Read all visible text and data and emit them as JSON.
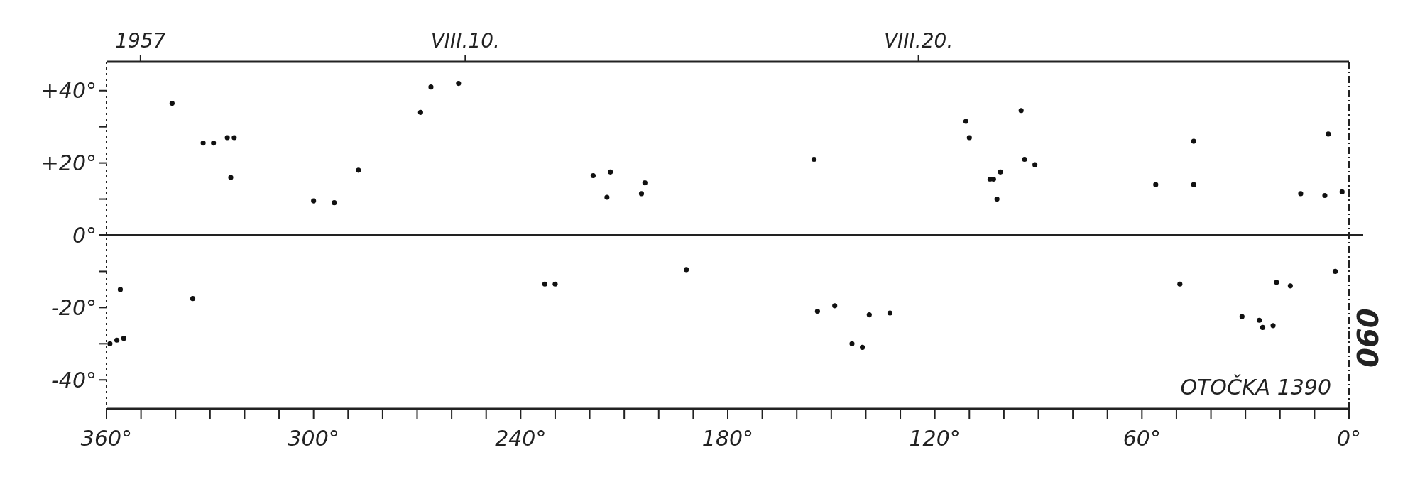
{
  "chart_data": {
    "type": "scatter",
    "marker": "circle",
    "xlim": [
      360,
      0
    ],
    "ylim": [
      -48,
      48
    ],
    "xticks": [
      {
        "value": 360,
        "label": "360°"
      },
      {
        "value": 350,
        "label": null
      },
      {
        "value": 340,
        "label": null
      },
      {
        "value": 330,
        "label": null
      },
      {
        "value": 320,
        "label": null
      },
      {
        "value": 310,
        "label": null
      },
      {
        "value": 300,
        "label": "300°"
      },
      {
        "value": 290,
        "label": null
      },
      {
        "value": 280,
        "label": null
      },
      {
        "value": 270,
        "label": null
      },
      {
        "value": 260,
        "label": null
      },
      {
        "value": 250,
        "label": null
      },
      {
        "value": 240,
        "label": "240°"
      },
      {
        "value": 230,
        "label": null
      },
      {
        "value": 220,
        "label": null
      },
      {
        "value": 210,
        "label": null
      },
      {
        "value": 200,
        "label": null
      },
      {
        "value": 190,
        "label": null
      },
      {
        "value": 180,
        "label": "180°"
      },
      {
        "value": 170,
        "label": null
      },
      {
        "value": 160,
        "label": null
      },
      {
        "value": 150,
        "label": null
      },
      {
        "value": 140,
        "label": null
      },
      {
        "value": 130,
        "label": null
      },
      {
        "value": 120,
        "label": "120°"
      },
      {
        "value": 110,
        "label": null
      },
      {
        "value": 100,
        "label": null
      },
      {
        "value": 90,
        "label": null
      },
      {
        "value": 80,
        "label": null
      },
      {
        "value": 70,
        "label": null
      },
      {
        "value": 60,
        "label": "60°"
      },
      {
        "value": 50,
        "label": null
      },
      {
        "value": 40,
        "label": null
      },
      {
        "value": 30,
        "label": null
      },
      {
        "value": 20,
        "label": null
      },
      {
        "value": 10,
        "label": null
      },
      {
        "value": 0,
        "label": "0°"
      }
    ],
    "yticks": [
      {
        "value": 40,
        "label": "+40°"
      },
      {
        "value": 30,
        "label": null
      },
      {
        "value": 20,
        "label": "+20°"
      },
      {
        "value": 10,
        "label": null
      },
      {
        "value": 0,
        "label": "0°"
      },
      {
        "value": -10,
        "label": null
      },
      {
        "value": -20,
        "label": "-20°"
      },
      {
        "value": -30,
        "label": null
      },
      {
        "value": -40,
        "label": "-40°"
      }
    ],
    "x2lim": [
      "1957-08-02T02:00",
      "1957-08-29T12:00"
    ],
    "x2ticks": [
      {
        "value": "1957-08-02T20:00",
        "label": "1957"
      },
      {
        "value": "1957-08-10",
        "label": "VIII.10."
      },
      {
        "value": "1957-08-20",
        "label": "VIII.20."
      }
    ],
    "ref_lines": [
      {
        "axis": "y",
        "value": 0,
        "color": "#222222"
      }
    ],
    "annotations": [
      "OTOČKA 1390",
      "090"
    ],
    "series": [
      {
        "color": "#111111",
        "x": [
          341,
          332,
          329,
          325,
          323,
          324,
          287,
          300,
          294,
          269,
          266,
          258,
          233,
          230,
          335,
          356,
          357,
          359,
          355,
          219,
          214,
          204,
          205,
          215,
          155,
          111,
          110,
          104,
          192,
          154,
          149,
          139,
          133,
          141,
          144,
          95,
          94,
          91,
          103,
          101,
          102,
          45,
          45,
          56,
          6,
          14,
          7,
          2,
          4,
          49,
          21,
          17,
          31,
          26,
          25,
          22
        ],
        "values": [
          36.5,
          25.5,
          25.5,
          27,
          27,
          16,
          18,
          9.5,
          9,
          34,
          41,
          42,
          -13.5,
          -13.5,
          -17.5,
          -15,
          -29,
          -30,
          -28.5,
          16.5,
          17.5,
          14.5,
          11.5,
          10.5,
          21,
          31.5,
          27,
          15.5,
          -9.5,
          -21,
          -19.5,
          -22,
          -21.5,
          -31,
          -30,
          34.5,
          21,
          19.5,
          15.5,
          17.5,
          10,
          26,
          14,
          14,
          28,
          11.5,
          11,
          12,
          -10,
          -13.5,
          -13,
          -14,
          -22.5,
          -23.5,
          -25.5,
          -25
        ]
      }
    ]
  }
}
